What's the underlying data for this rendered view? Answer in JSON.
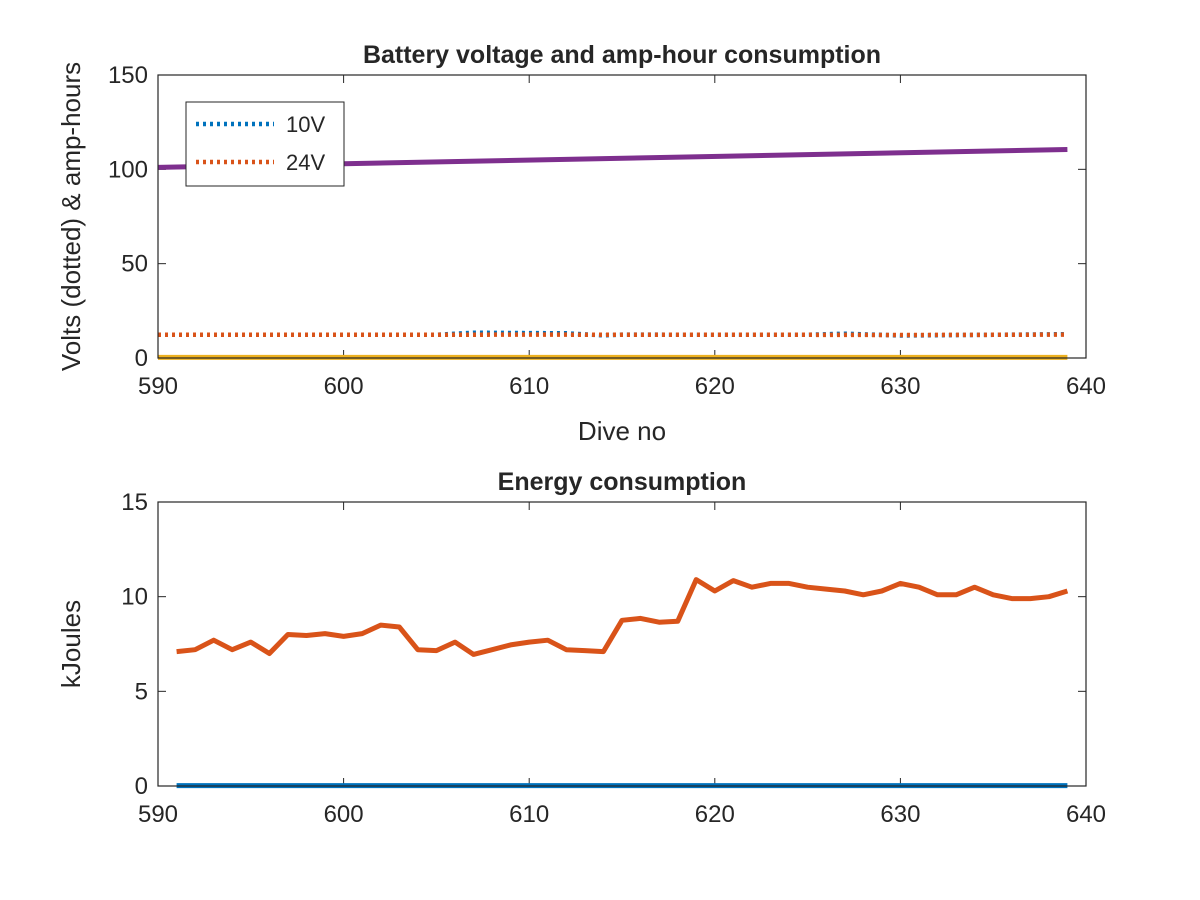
{
  "chart_data": [
    {
      "type": "line",
      "title": "Battery voltage and amp-hour consumption",
      "xlabel": "Dive no",
      "ylabel": "Volts (dotted) & amp-hours",
      "xlim": [
        590,
        640
      ],
      "ylim": [
        0,
        150
      ],
      "xticks": [
        590,
        600,
        610,
        620,
        630,
        640
      ],
      "yticks": [
        0,
        50,
        100,
        150
      ],
      "legend": {
        "placement": "top-left"
      },
      "series": [
        {
          "name": "10V",
          "color": "#0072BD",
          "style": "dotted",
          "in_legend": true,
          "x": [
            590,
            595,
            600,
            605,
            607,
            610,
            612,
            614,
            615,
            620,
            625,
            627,
            630,
            635,
            639
          ],
          "y": [
            12.3,
            12.3,
            12.3,
            12.3,
            13.4,
            13.2,
            13.1,
            12.0,
            12.4,
            12.3,
            12.3,
            12.9,
            11.9,
            12.3,
            12.6
          ]
        },
        {
          "name": "24V",
          "color": "#D95319",
          "style": "dotted",
          "in_legend": true,
          "x": [
            590,
            595,
            600,
            605,
            610,
            615,
            620,
            625,
            630,
            635,
            639
          ],
          "y": [
            12.3,
            12.3,
            12.3,
            12.3,
            12.4,
            12.3,
            12.3,
            12.3,
            12.2,
            12.3,
            12.4
          ]
        },
        {
          "name": "",
          "color": "#7E2F8E",
          "style": "solid",
          "in_legend": false,
          "x": [
            590,
            639
          ],
          "y": [
            101,
            110.5
          ]
        },
        {
          "name": "",
          "color": "#EDB120",
          "style": "solid",
          "in_legend": false,
          "x": [
            590,
            639
          ],
          "y": [
            0.3,
            0.3
          ]
        }
      ]
    },
    {
      "type": "line",
      "title": "Energy consumption",
      "xlabel": "",
      "ylabel": "kJoules",
      "xlim": [
        590,
        640
      ],
      "ylim": [
        0,
        15
      ],
      "xticks": [
        590,
        600,
        610,
        620,
        630,
        640
      ],
      "yticks": [
        0,
        5,
        10,
        15
      ],
      "series": [
        {
          "name": "",
          "color": "#D95319",
          "style": "solid",
          "x": [
            591,
            592,
            593,
            594,
            595,
            596,
            597,
            598,
            599,
            600,
            601,
            602,
            603,
            604,
            605,
            606,
            607,
            608,
            609,
            610,
            611,
            612,
            613,
            614,
            615,
            616,
            617,
            618,
            619,
            620,
            621,
            622,
            623,
            624,
            625,
            626,
            627,
            628,
            629,
            630,
            631,
            632,
            633,
            634,
            635,
            636,
            637,
            638,
            639
          ],
          "y": [
            7.1,
            7.2,
            7.7,
            7.2,
            7.6,
            7.0,
            8.0,
            7.95,
            8.05,
            7.9,
            8.05,
            8.5,
            8.4,
            7.2,
            7.15,
            7.6,
            6.95,
            7.2,
            7.45,
            7.6,
            7.7,
            7.2,
            7.15,
            7.1,
            8.75,
            8.85,
            8.65,
            8.7,
            10.9,
            10.3,
            10.85,
            10.5,
            10.7,
            10.7,
            10.5,
            10.4,
            10.3,
            10.1,
            10.3,
            10.7,
            10.5,
            10.1,
            10.1,
            10.5,
            10.1,
            9.9,
            9.9,
            10.0,
            10.3
          ]
        },
        {
          "name": "",
          "color": "#0072BD",
          "style": "solid",
          "x": [
            591,
            639
          ],
          "y": [
            0.02,
            0.02
          ]
        }
      ]
    }
  ]
}
